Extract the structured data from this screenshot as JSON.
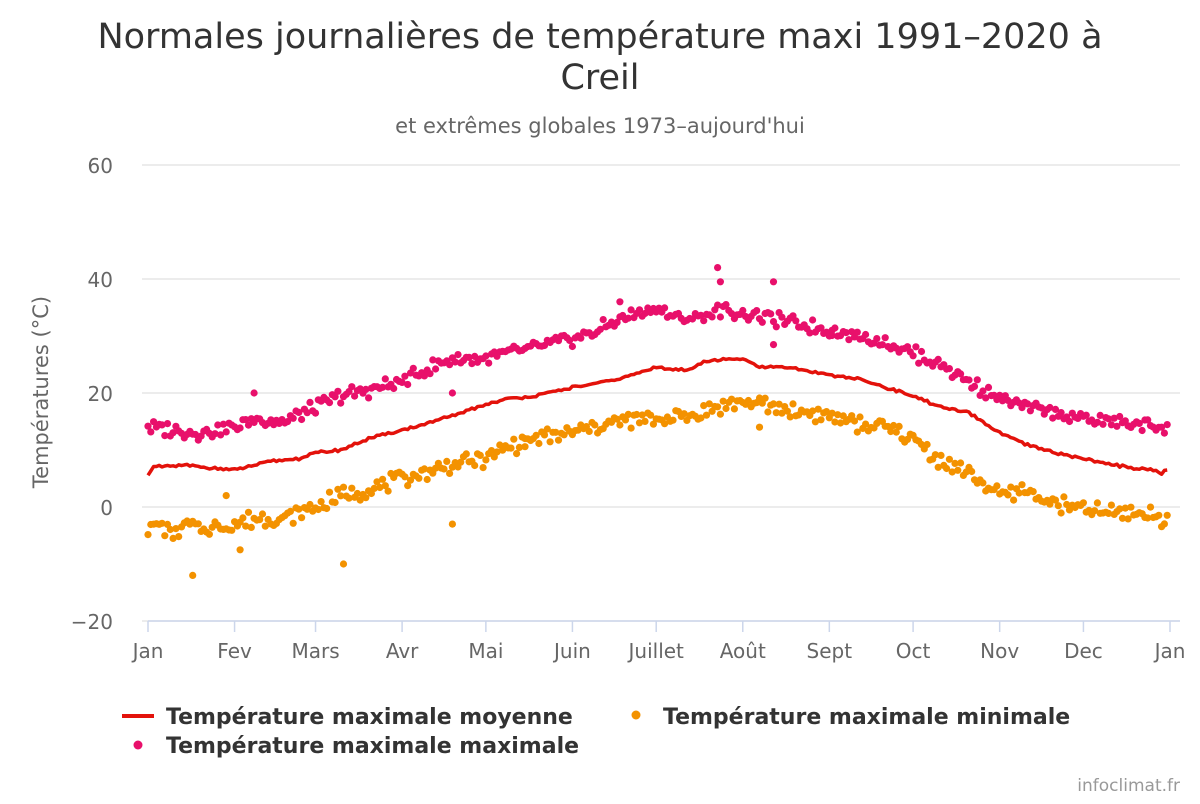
{
  "chart_data": {
    "type": "line",
    "title": "Normales journalières de température maxi 1991-2020 à Creil",
    "title_lines": [
      "Normales journalières de température maxi 1991–2020 à",
      "Creil"
    ],
    "subtitle": "et extrêmes globales 1973–aujourd'hui",
    "xlabel": "",
    "ylabel": "Températures (°C)",
    "ylim": [
      -20,
      60
    ],
    "y_ticks": [
      -20,
      0,
      20,
      40,
      60
    ],
    "y_tick_labels": [
      "−20",
      "0",
      "20",
      "40",
      "60"
    ],
    "x_ticks": [
      "Jan",
      "Fev",
      "Mars",
      "Avr",
      "Mai",
      "Juin",
      "Juillet",
      "Août",
      "Sept",
      "Oct",
      "Nov",
      "Dec",
      "Jan"
    ],
    "x_tick_days": [
      1,
      32,
      61,
      92,
      122,
      153,
      183,
      214,
      245,
      275,
      306,
      336,
      367
    ],
    "x_range_days": [
      1,
      367
    ],
    "grid": "horizontal",
    "legend_position": "bottom",
    "colors": {
      "moyenne": "#e3120b",
      "minimale": "#f39200",
      "maximale": "#e8106b",
      "grid": "#e6e6e6",
      "axis": "#ccd6eb",
      "text": "#333333",
      "subtext": "#666666"
    },
    "anchors": {
      "moyenne": [
        [
          1,
          5.8
        ],
        [
          3,
          7
        ],
        [
          15,
          7.3
        ],
        [
          25,
          6.8
        ],
        [
          32,
          6.5
        ],
        [
          45,
          8
        ],
        [
          55,
          8.5
        ],
        [
          61,
          9.5
        ],
        [
          70,
          10
        ],
        [
          80,
          12
        ],
        [
          92,
          13.5
        ],
        [
          100,
          14.5
        ],
        [
          110,
          16
        ],
        [
          122,
          18
        ],
        [
          130,
          19
        ],
        [
          140,
          19.5
        ],
        [
          153,
          21
        ],
        [
          160,
          21.5
        ],
        [
          170,
          22.5
        ],
        [
          183,
          24.5
        ],
        [
          195,
          24
        ],
        [
          200,
          25.5
        ],
        [
          206,
          25.8
        ],
        [
          214,
          26
        ],
        [
          220,
          24.5
        ],
        [
          230,
          24.5
        ],
        [
          245,
          23.2
        ],
        [
          255,
          22.5
        ],
        [
          265,
          21
        ],
        [
          275,
          19.5
        ],
        [
          285,
          17.5
        ],
        [
          295,
          16.5
        ],
        [
          306,
          13
        ],
        [
          315,
          11
        ],
        [
          326,
          9.5
        ],
        [
          336,
          8.5
        ],
        [
          345,
          7.5
        ],
        [
          355,
          6.8
        ],
        [
          362,
          6.5
        ],
        [
          364,
          5.7
        ],
        [
          367,
          7.2
        ]
      ],
      "minimale": [
        [
          1,
          -4
        ],
        [
          5,
          -3
        ],
        [
          10,
          -5
        ],
        [
          15,
          -3
        ],
        [
          20,
          -4
        ],
        [
          32,
          -3
        ],
        [
          40,
          -2
        ],
        [
          50,
          -2
        ],
        [
          61,
          0
        ],
        [
          70,
          2
        ],
        [
          80,
          3
        ],
        [
          92,
          5
        ],
        [
          100,
          6
        ],
        [
          110,
          7.5
        ],
        [
          122,
          8.5
        ],
        [
          130,
          10.5
        ],
        [
          140,
          12
        ],
        [
          153,
          13
        ],
        [
          160,
          14
        ],
        [
          170,
          15
        ],
        [
          183,
          15.5
        ],
        [
          195,
          16
        ],
        [
          205,
          17.5
        ],
        [
          214,
          18.5
        ],
        [
          220,
          18
        ],
        [
          230,
          17
        ],
        [
          245,
          16
        ],
        [
          255,
          14.5
        ],
        [
          265,
          14
        ],
        [
          275,
          12
        ],
        [
          285,
          8
        ],
        [
          295,
          6
        ],
        [
          306,
          2
        ],
        [
          315,
          3
        ],
        [
          326,
          0.5
        ],
        [
          336,
          -0.5
        ],
        [
          345,
          -1
        ],
        [
          355,
          -1
        ],
        [
          362,
          -1.5
        ],
        [
          367,
          -2.5
        ]
      ],
      "maximale": [
        [
          1,
          14
        ],
        [
          10,
          13.5
        ],
        [
          20,
          13
        ],
        [
          32,
          14
        ],
        [
          40,
          15.5
        ],
        [
          50,
          15
        ],
        [
          61,
          17.5
        ],
        [
          70,
          19.5
        ],
        [
          80,
          20.5
        ],
        [
          92,
          22
        ],
        [
          100,
          24
        ],
        [
          110,
          26
        ],
        [
          122,
          26
        ],
        [
          130,
          27
        ],
        [
          140,
          28
        ],
        [
          153,
          29.5
        ],
        [
          160,
          30.5
        ],
        [
          170,
          33
        ],
        [
          183,
          35
        ],
        [
          190,
          33
        ],
        [
          200,
          33.5
        ],
        [
          206,
          34.5
        ],
        [
          214,
          34
        ],
        [
          220,
          33.5
        ],
        [
          230,
          32.5
        ],
        [
          245,
          31
        ],
        [
          255,
          30
        ],
        [
          265,
          29
        ],
        [
          275,
          27
        ],
        [
          285,
          25
        ],
        [
          295,
          22
        ],
        [
          306,
          19
        ],
        [
          315,
          17.5
        ],
        [
          326,
          16.5
        ],
        [
          336,
          15.5
        ],
        [
          345,
          15
        ],
        [
          355,
          14.5
        ],
        [
          367,
          14
        ]
      ]
    },
    "noise_amplitude": {
      "moyenne": 0.25,
      "minimale": 1.6,
      "maximale": 1.4
    },
    "outliers": {
      "minimale": [
        [
          17,
          -12
        ],
        [
          29,
          2
        ],
        [
          34,
          -7.5
        ],
        [
          71,
          -10
        ],
        [
          110,
          -3
        ],
        [
          136,
          12
        ],
        [
          220,
          14
        ]
      ],
      "maximale": [
        [
          39,
          20
        ],
        [
          110,
          20
        ],
        [
          170,
          36
        ],
        [
          205,
          42
        ],
        [
          206,
          39.5
        ],
        [
          225,
          39.5
        ],
        [
          225,
          28.5
        ],
        [
          246,
          31
        ]
      ]
    },
    "series": [
      {
        "name": "Température maximale moyenne",
        "kind": "line",
        "color": "#e3120b"
      },
      {
        "name": "Température maximale minimale",
        "kind": "scatter",
        "color": "#f39200"
      },
      {
        "name": "Température maximale maximale",
        "kind": "scatter",
        "color": "#e8106b"
      }
    ],
    "credit": "infoclimat.fr"
  }
}
